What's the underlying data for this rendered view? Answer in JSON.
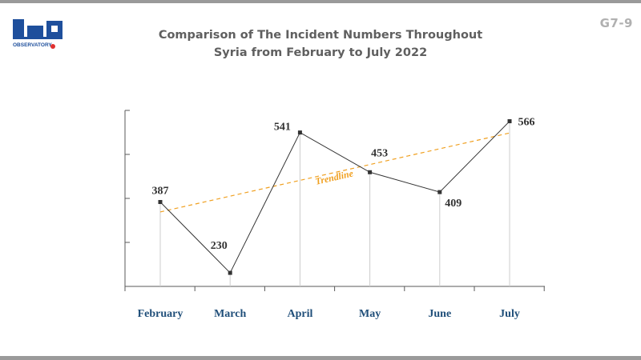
{
  "header": {
    "code": "G7-9",
    "title_line1": "Comparison of The Incident Numbers Throughout",
    "title_line2": "Syria from February to July 2022",
    "logo": {
      "icon": "rased-observatory-logo",
      "text": "OBSERVATORY"
    }
  },
  "colors": {
    "line": "#333333",
    "trendline": "#f0a020",
    "axis": "#5a5a5a",
    "gridline": "#cccccc",
    "category_label": "#1f4e79",
    "value_label": "#333333",
    "logo_blue": "#1e4f9c"
  },
  "chart_data": {
    "type": "line",
    "title": "Comparison of The Incident Numbers Throughout Syria from February to July 2022",
    "categories": [
      "February",
      "March",
      "April",
      "May",
      "June",
      "July"
    ],
    "series": [
      {
        "values": [
          387,
          230,
          541,
          453,
          409,
          566
        ]
      }
    ],
    "data_labels": [
      "387",
      "230",
      "541",
      "453",
      "409",
      "566"
    ],
    "trendline": {
      "label": "Trendline",
      "start": 365,
      "end": 540
    },
    "ylim": [
      200,
      590
    ],
    "grid": false,
    "legend": "none"
  }
}
